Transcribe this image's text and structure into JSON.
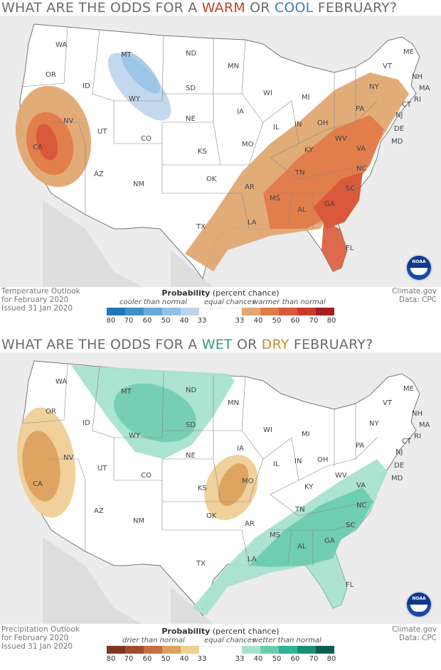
{
  "temperature": {
    "title_parts": [
      "WHAT ARE THE ODDS FOR A ",
      "WARM",
      " OR ",
      "COOL",
      " FEBRUARY?"
    ],
    "title_colors": [
      "#6b6b6b",
      "#c0452a",
      "#6b6b6b",
      "#3f7fb6",
      "#6b6b6b"
    ],
    "info_left": [
      "Temperature Outlook",
      "for February 2020",
      "Issued 31 Jan 2020"
    ],
    "info_right": [
      "Climate.gov",
      "Data: CPC"
    ],
    "legend_title_bold": "Probability",
    "legend_title_rest": " (percent chance)",
    "caption_low": "cooler than normal",
    "caption_mid": "equal chances",
    "caption_high": "warmer than normal",
    "low_colors": [
      "#1f78b4",
      "#3f8fc8",
      "#6aaad8",
      "#93c0e3",
      "#bcd4ec"
    ],
    "high_colors": [
      "#e0a872",
      "#e07b4a",
      "#d9593b",
      "#cc3a2e",
      "#a51e22"
    ],
    "ticks": [
      "80",
      "70",
      "60",
      "50",
      "40",
      "33",
      "33",
      "40",
      "50",
      "60",
      "70",
      "80"
    ],
    "logo": "NOAA",
    "states": [
      "WA",
      "OR",
      "ID",
      "MT",
      "WY",
      "ND",
      "SD",
      "NE",
      "MN",
      "IA",
      "WI",
      "MI",
      "CA",
      "NV",
      "UT",
      "CO",
      "KS",
      "MO",
      "IL",
      "IN",
      "OH",
      "PA",
      "NY",
      "VT",
      "NH",
      "ME",
      "MA",
      "RI",
      "CT",
      "NJ",
      "DE",
      "MD",
      "WV",
      "VA",
      "KY",
      "TN",
      "NC",
      "SC",
      "GA",
      "AL",
      "MS",
      "AR",
      "LA",
      "OK",
      "TX",
      "NM",
      "AZ",
      "FL"
    ]
  },
  "precipitation": {
    "title_parts": [
      "WHAT ARE THE ODDS FOR A ",
      "WET",
      " OR ",
      "DRY",
      " FEBRUARY?"
    ],
    "title_colors": [
      "#6b6b6b",
      "#2e9e7e",
      "#6b6b6b",
      "#c88a2e",
      "#6b6b6b"
    ],
    "info_left": [
      "Precipitation Outlook",
      "for February 2020",
      "Issued 31 Jan 2020"
    ],
    "info_right": [
      "Climate.gov",
      "Data: CPC"
    ],
    "legend_title_bold": "Probability",
    "legend_title_rest": " (percent chance)",
    "caption_low": "drier than normal",
    "caption_mid": "equal chances",
    "caption_high": "wetter than normal",
    "low_colors": [
      "#7b3a1f",
      "#a04d2e",
      "#c56e45",
      "#dba25e",
      "#efcf96"
    ],
    "high_colors": [
      "#a8e1cf",
      "#6ccbaf",
      "#2fb392",
      "#1a8f76",
      "#0b5e4f"
    ],
    "ticks": [
      "80",
      "70",
      "60",
      "50",
      "40",
      "33",
      "33",
      "40",
      "50",
      "60",
      "70",
      "80"
    ],
    "logo": "NOAA",
    "states": [
      "WA",
      "OR",
      "ID",
      "MT",
      "WY",
      "ND",
      "SD",
      "NE",
      "MN",
      "IA",
      "WI",
      "MI",
      "CA",
      "NV",
      "UT",
      "CO",
      "KS",
      "MO",
      "IL",
      "IN",
      "OH",
      "PA",
      "NY",
      "VT",
      "NH",
      "ME",
      "MA",
      "RI",
      "CT",
      "NJ",
      "DE",
      "MD",
      "WV",
      "VA",
      "KY",
      "TN",
      "NC",
      "SC",
      "GA",
      "AL",
      "MS",
      "AR",
      "LA",
      "OK",
      "TX",
      "NM",
      "AZ",
      "FL"
    ]
  }
}
